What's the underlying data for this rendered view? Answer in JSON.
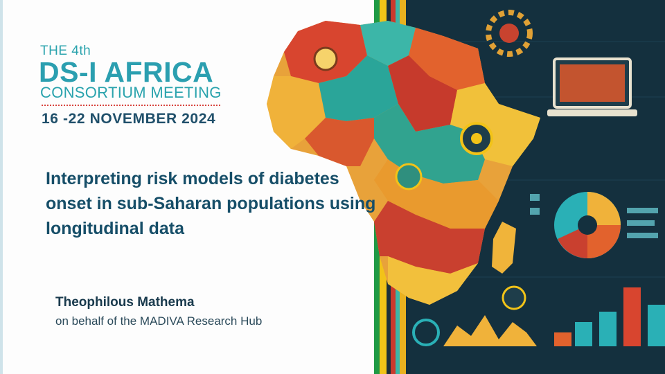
{
  "header": {
    "edition": "THE 4th",
    "event_name": "DS-I AFRICA",
    "subtitle": "CONSORTIUM MEETING",
    "dates": "16 -22 NOVEMBER 2024"
  },
  "talk": {
    "title": "Interpreting risk models of diabetes onset in sub-Saharan populations using longitudinal data",
    "presenter": "Theophilous Mathema",
    "affiliation": "on behalf of the MADIVA Research Hub"
  },
  "colors": {
    "brand_teal": "#2aa3ad",
    "title_navy": "#164e68",
    "accent_red": "#d8453f",
    "stripe_green": "#1f9a45",
    "stripe_yellow": "#f2c318",
    "panel_bg": "#14303e"
  },
  "artwork": {
    "icons": [
      "africa-map-illustration",
      "laptop-icon",
      "pie-chart-icon",
      "bar-chart-icon",
      "gear-icon",
      "medical-emblem-icon"
    ]
  }
}
